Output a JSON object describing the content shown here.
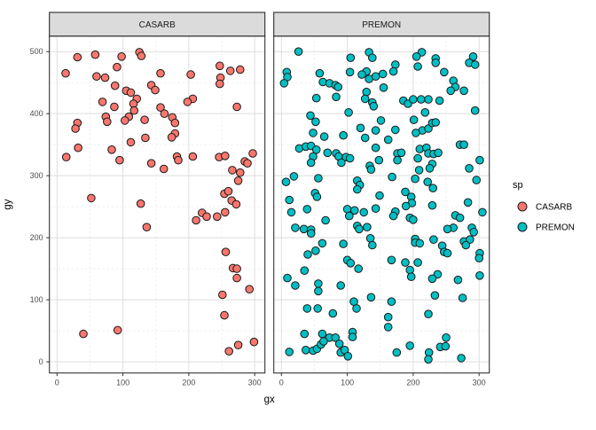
{
  "figure": {
    "xlabel": "gx",
    "ylabel": "gy",
    "legend": {
      "title": "sp",
      "items": [
        {
          "label": "CASARB",
          "color": "#F8766D"
        },
        {
          "label": "PREMON",
          "color": "#00BFC4"
        }
      ]
    }
  },
  "chart_data": {
    "type": "scatter",
    "title": "",
    "xlabel": "gx",
    "ylabel": "gy",
    "legend_title": "sp",
    "legend_position": "right",
    "grid": true,
    "x_ticks": [
      0,
      100,
      200,
      300
    ],
    "y_ticks": [
      0,
      100,
      200,
      300,
      400,
      500
    ],
    "x_minor": [
      50,
      150,
      250
    ],
    "y_minor": [
      50,
      150,
      250,
      350,
      450
    ],
    "xlim": [
      -11.6,
      315.5
    ],
    "ylim": [
      -18,
      525
    ],
    "point_stroke": "#1a1a1a",
    "facets": [
      {
        "label": "CASARB",
        "color": "#F8766D",
        "points": [
          [
            31,
            491
          ],
          [
            58,
            495
          ],
          [
            98,
            492
          ],
          [
            125,
            499
          ],
          [
            128,
            493
          ],
          [
            13,
            465
          ],
          [
            60,
            460
          ],
          [
            73,
            458
          ],
          [
            91,
            475
          ],
          [
            157,
            465
          ],
          [
            203,
            463
          ],
          [
            247,
            477
          ],
          [
            263,
            469
          ],
          [
            278,
            471
          ],
          [
            88,
            445
          ],
          [
            105,
            437
          ],
          [
            112,
            434
          ],
          [
            143,
            446
          ],
          [
            149,
            438
          ],
          [
            248,
            458
          ],
          [
            247,
            448
          ],
          [
            121,
            424
          ],
          [
            116,
            416
          ],
          [
            69,
            419
          ],
          [
            87,
            411
          ],
          [
            206,
            424
          ],
          [
            198,
            419
          ],
          [
            273,
            411
          ],
          [
            117,
            405
          ],
          [
            109,
            395
          ],
          [
            103,
            389
          ],
          [
            133,
            390
          ],
          [
            74,
            395
          ],
          [
            76,
            387
          ],
          [
            31,
            385
          ],
          [
            28,
            376
          ],
          [
            157,
            410
          ],
          [
            163,
            400
          ],
          [
            175,
            394
          ],
          [
            179,
            385
          ],
          [
            134,
            361
          ],
          [
            112,
            354
          ],
          [
            179,
            368
          ],
          [
            174,
            362
          ],
          [
            32,
            345
          ],
          [
            83,
            342
          ],
          [
            14,
            330
          ],
          [
            95,
            325
          ],
          [
            143,
            320
          ],
          [
            182,
            331
          ],
          [
            184,
            325
          ],
          [
            206,
            331
          ],
          [
            246,
            330
          ],
          [
            255,
            332
          ],
          [
            297,
            336
          ],
          [
            285,
            323
          ],
          [
            289,
            320
          ],
          [
            162,
            311
          ],
          [
            266,
            309
          ],
          [
            278,
            305
          ],
          [
            275,
            292
          ],
          [
            254,
            271
          ],
          [
            260,
            275
          ],
          [
            265,
            260
          ],
          [
            52,
            264
          ],
          [
            127,
            255
          ],
          [
            272,
            254
          ],
          [
            220,
            240
          ],
          [
            211,
            228
          ],
          [
            227,
            234
          ],
          [
            243,
            234
          ],
          [
            255,
            241
          ],
          [
            136,
            217
          ],
          [
            256,
            177
          ],
          [
            267,
            151
          ],
          [
            273,
            150
          ],
          [
            273,
            135
          ],
          [
            292,
            117
          ],
          [
            251,
            108
          ],
          [
            254,
            75
          ],
          [
            40,
            45
          ],
          [
            92,
            51
          ],
          [
            261,
            17
          ],
          [
            275,
            27
          ],
          [
            299,
            32
          ]
        ]
      },
      {
        "label": "PREMON",
        "color": "#00BFC4",
        "points": [
          [
            26,
            500
          ],
          [
            105,
            490
          ],
          [
            133,
            499
          ],
          [
            138,
            490
          ],
          [
            8,
            467
          ],
          [
            9,
            459
          ],
          [
            4,
            449
          ],
          [
            58,
            465
          ],
          [
            63,
            451
          ],
          [
            73,
            449
          ],
          [
            82,
            446
          ],
          [
            86,
            443
          ],
          [
            53,
            425
          ],
          [
            83,
            427
          ],
          [
            104,
            467
          ],
          [
            129,
            468
          ],
          [
            122,
            463
          ],
          [
            133,
            456
          ],
          [
            143,
            460
          ],
          [
            154,
            464
          ],
          [
            155,
            442
          ],
          [
            129,
            435
          ],
          [
            127,
            424
          ],
          [
            138,
            418
          ],
          [
            140,
            412
          ],
          [
            102,
            402
          ],
          [
            44,
            397
          ],
          [
            52,
            387
          ],
          [
            151,
            389
          ],
          [
            120,
            377
          ],
          [
            143,
            373
          ],
          [
            48,
            369
          ],
          [
            65,
            363
          ],
          [
            94,
            365
          ],
          [
            127,
            361
          ],
          [
            27,
            344
          ],
          [
            37,
            347
          ],
          [
            45,
            348
          ],
          [
            53,
            342
          ],
          [
            48,
            331
          ],
          [
            45,
            321
          ],
          [
            70,
            337
          ],
          [
            83,
            336
          ],
          [
            87,
            331
          ],
          [
            98,
            330
          ],
          [
            104,
            328
          ],
          [
            91,
            321
          ],
          [
            143,
            345
          ],
          [
            148,
            325
          ],
          [
            134,
            316
          ],
          [
            136,
            310
          ],
          [
            19,
            299
          ],
          [
            7,
            290
          ],
          [
            56,
            296
          ],
          [
            115,
            292
          ],
          [
            119,
            285
          ],
          [
            115,
            278
          ],
          [
            149,
            268
          ],
          [
            51,
            272
          ],
          [
            54,
            266
          ],
          [
            12,
            261
          ],
          [
            213,
            499
          ],
          [
            205,
            492
          ],
          [
            234,
            489
          ],
          [
            234,
            482
          ],
          [
            291,
            492
          ],
          [
            285,
            482
          ],
          [
            294,
            479
          ],
          [
            207,
            476
          ],
          [
            173,
            479
          ],
          [
            170,
            468
          ],
          [
            247,
            467
          ],
          [
            261,
            453
          ],
          [
            264,
            443
          ],
          [
            257,
            437
          ],
          [
            277,
            437
          ],
          [
            185,
            421
          ],
          [
            192,
            416
          ],
          [
            200,
            423
          ],
          [
            212,
            423
          ],
          [
            223,
            423
          ],
          [
            240,
            421
          ],
          [
            294,
            405
          ],
          [
            218,
            402
          ],
          [
            201,
            390
          ],
          [
            214,
            373
          ],
          [
            223,
            376
          ],
          [
            229,
            385
          ],
          [
            234,
            386
          ],
          [
            173,
            374
          ],
          [
            162,
            358
          ],
          [
            204,
            369
          ],
          [
            271,
            350
          ],
          [
            277,
            350
          ],
          [
            176,
            336
          ],
          [
            182,
            337
          ],
          [
            176,
            325
          ],
          [
            210,
            343
          ],
          [
            220,
            345
          ],
          [
            223,
            336
          ],
          [
            231,
            335
          ],
          [
            238,
            337
          ],
          [
            207,
            328
          ],
          [
            301,
            325
          ],
          [
            285,
            312
          ],
          [
            229,
            319
          ],
          [
            225,
            312
          ],
          [
            209,
            309
          ],
          [
            168,
            298
          ],
          [
            203,
            295
          ],
          [
            222,
            290
          ],
          [
            230,
            280
          ],
          [
            296,
            293
          ],
          [
            188,
            274
          ],
          [
            197,
            266
          ],
          [
            15,
            241
          ],
          [
            39,
            246
          ],
          [
            67,
            228
          ],
          [
            100,
            246
          ],
          [
            111,
            244
          ],
          [
            103,
            235
          ],
          [
            125,
            241
          ],
          [
            143,
            247
          ],
          [
            21,
            216
          ],
          [
            34,
            214
          ],
          [
            45,
            213
          ],
          [
            45,
            207
          ],
          [
            115,
            219
          ],
          [
            118,
            214
          ],
          [
            130,
            217
          ],
          [
            135,
            199
          ],
          [
            138,
            188
          ],
          [
            62,
            191
          ],
          [
            52,
            179
          ],
          [
            40,
            173
          ],
          [
            94,
            190
          ],
          [
            100,
            164
          ],
          [
            105,
            159
          ],
          [
            117,
            150
          ],
          [
            35,
            147
          ],
          [
            9,
            135
          ],
          [
            21,
            123
          ],
          [
            56,
            126
          ],
          [
            56,
            114
          ],
          [
            90,
            123
          ],
          [
            110,
            97
          ],
          [
            114,
            86
          ],
          [
            136,
            104
          ],
          [
            39,
            86
          ],
          [
            55,
            86
          ],
          [
            78,
            78
          ],
          [
            35,
            45
          ],
          [
            62,
            45
          ],
          [
            73,
            39
          ],
          [
            82,
            39
          ],
          [
            108,
            48
          ],
          [
            108,
            40
          ],
          [
            12,
            16
          ],
          [
            37,
            19
          ],
          [
            48,
            18
          ],
          [
            54,
            21
          ],
          [
            60,
            28
          ],
          [
            64,
            33
          ],
          [
            88,
            29
          ],
          [
            90,
            15
          ],
          [
            96,
            19
          ],
          [
            101,
            9
          ],
          [
            198,
            256
          ],
          [
            189,
            251
          ],
          [
            229,
            252
          ],
          [
            283,
            257
          ],
          [
            173,
            242
          ],
          [
            170,
            235
          ],
          [
            195,
            232
          ],
          [
            200,
            229
          ],
          [
            305,
            241
          ],
          [
            264,
            236
          ],
          [
            271,
            232
          ],
          [
            261,
            216
          ],
          [
            252,
            214
          ],
          [
            289,
            216
          ],
          [
            292,
            209
          ],
          [
            203,
            198
          ],
          [
            203,
            192
          ],
          [
            210,
            191
          ],
          [
            231,
            197
          ],
          [
            244,
            187
          ],
          [
            277,
            194
          ],
          [
            286,
            197
          ],
          [
            280,
            188
          ],
          [
            247,
            177
          ],
          [
            252,
            175
          ],
          [
            301,
            175
          ],
          [
            300,
            167
          ],
          [
            167,
            164
          ],
          [
            188,
            160
          ],
          [
            207,
            160
          ],
          [
            195,
            148
          ],
          [
            197,
            137
          ],
          [
            237,
            141
          ],
          [
            229,
            134
          ],
          [
            301,
            139
          ],
          [
            268,
            132
          ],
          [
            233,
            107
          ],
          [
            275,
            103
          ],
          [
            167,
            97
          ],
          [
            223,
            77
          ],
          [
            162,
            72
          ],
          [
            162,
            56
          ],
          [
            250,
            39
          ],
          [
            195,
            26
          ],
          [
            241,
            24
          ],
          [
            249,
            25
          ],
          [
            175,
            15
          ],
          [
            224,
            15
          ],
          [
            223,
            4
          ],
          [
            273,
            6
          ]
        ]
      }
    ]
  },
  "style": {
    "panel_bg": "#FFFFFF",
    "panel_border": "#333333",
    "strip_bg": "#DBDBDB",
    "strip_border": "#2a2a2a",
    "grid_major": "#DEDEDE",
    "grid_minor": "#ECECEC",
    "tick_color": "#333333"
  }
}
